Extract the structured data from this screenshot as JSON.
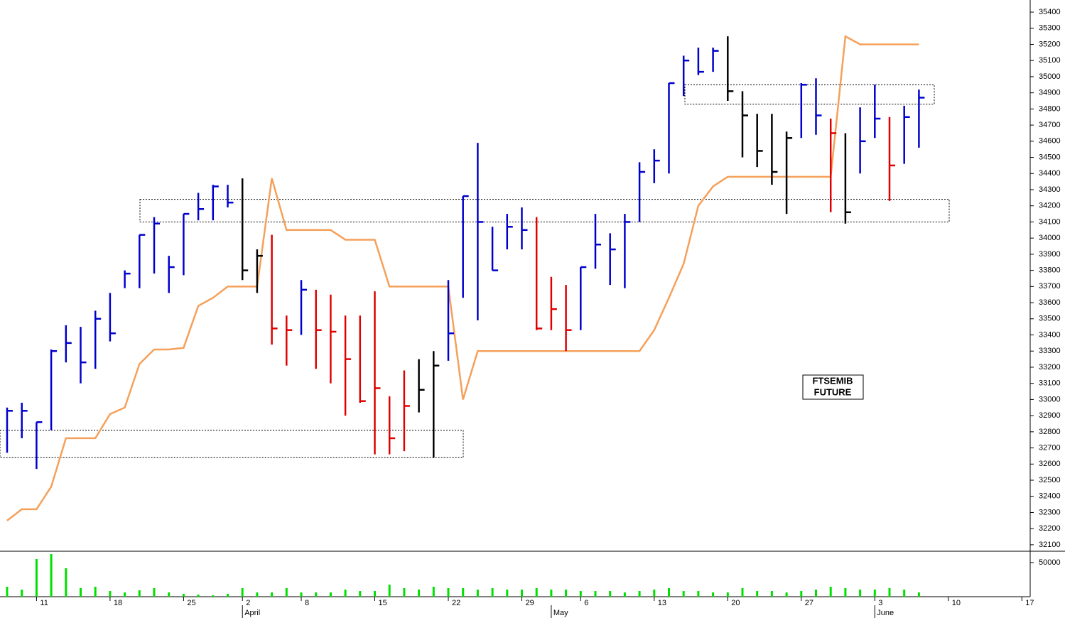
{
  "chart_data": [
    {
      "type": "ohlc",
      "categories": [
        null,
        null,
        "11",
        null,
        null,
        null,
        null,
        "18",
        null,
        null,
        null,
        null,
        "25",
        null,
        null,
        null,
        "2",
        null,
        null,
        null,
        "8",
        null,
        null,
        null,
        null,
        "15",
        null,
        null,
        null,
        null,
        "22",
        null,
        null,
        null,
        null,
        "29",
        null,
        null,
        null,
        "6",
        null,
        null,
        null,
        null,
        "13",
        null,
        null,
        null,
        null,
        "20",
        null,
        null,
        null,
        null,
        "27",
        null,
        null,
        null,
        null,
        "3",
        null,
        null,
        null,
        null,
        "10",
        null,
        null,
        null,
        null,
        "17"
      ],
      "months": [
        null,
        null,
        null,
        null,
        null,
        null,
        null,
        null,
        null,
        null,
        null,
        null,
        null,
        null,
        null,
        null,
        "April",
        null,
        null,
        null,
        null,
        null,
        null,
        null,
        null,
        null,
        null,
        null,
        null,
        null,
        null,
        null,
        null,
        null,
        null,
        null,
        null,
        "May",
        null,
        null,
        null,
        null,
        null,
        null,
        null,
        null,
        null,
        null,
        null,
        null,
        null,
        null,
        null,
        null,
        null,
        null,
        null,
        null,
        null,
        "June",
        null,
        null,
        null,
        null,
        null,
        null,
        null,
        null,
        null,
        null
      ],
      "high": [
        32950,
        32980,
        32860,
        33310,
        33460,
        33450,
        33550,
        33660,
        33800,
        34020,
        34130,
        33890,
        34150,
        34280,
        34330,
        34330,
        34370,
        33930,
        34020,
        33520,
        33740,
        33680,
        33650,
        33520,
        33520,
        33670,
        33020,
        33180,
        33250,
        33300,
        33740,
        34260,
        34590,
        34070,
        34150,
        34190,
        34130,
        33760,
        33710,
        33820,
        34150,
        34030,
        34150,
        34470,
        34550,
        34960,
        35130,
        35180,
        35180,
        35250,
        34910,
        34770,
        34770,
        34660,
        34960,
        34990,
        34740,
        34650,
        34810,
        34950,
        34750,
        34820,
        34920,
        null,
        null,
        null,
        null,
        null,
        null,
        null
      ],
      "low": [
        32670,
        32760,
        32570,
        32810,
        33230,
        33100,
        33190,
        33360,
        33690,
        33690,
        33780,
        33660,
        33770,
        34110,
        34110,
        34190,
        33740,
        33660,
        33340,
        33210,
        33400,
        33190,
        33100,
        32900,
        32980,
        32660,
        32660,
        32680,
        32920,
        32640,
        33240,
        33630,
        33490,
        33800,
        33930,
        33930,
        33430,
        33430,
        33300,
        33430,
        33810,
        33710,
        33690,
        34100,
        34340,
        34400,
        34880,
        35010,
        35030,
        34850,
        34500,
        34440,
        34330,
        34150,
        34620,
        34640,
        34160,
        34090,
        34400,
        34620,
        34230,
        34460,
        34560,
        null,
        null,
        null,
        null,
        null,
        null,
        null
      ],
      "close": [
        32930,
        32930,
        32860,
        33300,
        33350,
        33230,
        33500,
        33410,
        33780,
        34020,
        34090,
        33820,
        34150,
        34180,
        34320,
        34220,
        33800,
        33890,
        33440,
        33430,
        33680,
        33430,
        33420,
        33250,
        32990,
        33070,
        32760,
        32960,
        33060,
        33210,
        33410,
        34260,
        34100,
        33800,
        34070,
        34050,
        33440,
        33560,
        33430,
        33820,
        33960,
        33930,
        34100,
        34410,
        34480,
        34960,
        35100,
        35030,
        35160,
        34910,
        34760,
        34540,
        34410,
        34620,
        34950,
        34760,
        34650,
        34160,
        34600,
        34740,
        34450,
        34750,
        34870,
        null,
        null,
        null,
        null,
        null,
        null,
        null
      ],
      "colors": [
        "#0000cc",
        "#0000cc",
        "#0000cc",
        "#0000cc",
        "#0000cc",
        "#0000cc",
        "#0000cc",
        "#0000cc",
        "#0000cc",
        "#0000cc",
        "#0000cc",
        "#0000cc",
        "#0000cc",
        "#0000cc",
        "#0000cc",
        "#0000cc",
        "#000000",
        "#000000",
        "#e00000",
        "#e00000",
        "#0000cc",
        "#e00000",
        "#e00000",
        "#e00000",
        "#e00000",
        "#e00000",
        "#e00000",
        "#e00000",
        "#000000",
        "#000000",
        "#0000cc",
        "#0000cc",
        "#0000cc",
        "#0000cc",
        "#0000cc",
        "#0000cc",
        "#e00000",
        "#e00000",
        "#e00000",
        "#0000cc",
        "#0000cc",
        "#0000cc",
        "#0000cc",
        "#0000cc",
        "#0000cc",
        "#0000cc",
        "#0000cc",
        "#0000cc",
        "#0000cc",
        "#000000",
        "#000000",
        "#000000",
        "#000000",
        "#000000",
        "#0000cc",
        "#0000cc",
        "#e00000",
        "#000000",
        "#0000cc",
        "#0000cc",
        "#e00000",
        "#0000cc",
        "#0000cc",
        null,
        null,
        null,
        null,
        null,
        null,
        null
      ],
      "line_color": "#f5a05a",
      "line_values": [
        32250,
        32320,
        32320,
        32460,
        32760,
        32760,
        32760,
        32910,
        32950,
        33220,
        33310,
        33310,
        33320,
        33580,
        33630,
        33700,
        33700,
        33700,
        34370,
        34050,
        34050,
        34050,
        34050,
        33990,
        33990,
        33990,
        33700,
        33700,
        33700,
        33700,
        33700,
        33000,
        33300,
        33300,
        33300,
        33300,
        33300,
        33300,
        33300,
        33300,
        33300,
        33300,
        33300,
        33300,
        33430,
        33630,
        33840,
        34200,
        34320,
        34380,
        34380,
        34380,
        34380,
        34380,
        34380,
        34380,
        34380,
        35250,
        35200,
        35200,
        35200,
        35200,
        35200,
        null,
        null,
        null,
        null,
        null,
        null,
        null
      ],
      "zones": [
        [
          32640,
          32810
        ],
        [
          34100,
          34240
        ],
        [
          34830,
          34950
        ]
      ],
      "annotation": [
        "FTSEMIB",
        "FUTURE"
      ],
      "ylim": [
        32060,
        35475
      ],
      "yticks": [
        32100,
        32200,
        32300,
        32400,
        32500,
        32600,
        32700,
        32800,
        32900,
        33000,
        33100,
        33200,
        33300,
        33400,
        33500,
        33600,
        33700,
        33800,
        33900,
        34000,
        34100,
        34200,
        34300,
        34400,
        34500,
        34600,
        34700,
        34800,
        34900,
        35000,
        35100,
        35200,
        35300,
        35400
      ]
    },
    {
      "type": "bar",
      "color": "#00e000",
      "values": [
        14600,
        10400,
        55200,
        62500,
        41700,
        12500,
        14600,
        8300,
        6300,
        9400,
        12500,
        6300,
        4200,
        3100,
        2100,
        4200,
        12500,
        6300,
        6300,
        12500,
        6300,
        6300,
        6300,
        10400,
        8300,
        8300,
        17700,
        12500,
        10400,
        14600,
        12500,
        12500,
        10400,
        12500,
        10400,
        10400,
        12500,
        10400,
        10400,
        8300,
        8300,
        8300,
        6300,
        8300,
        10400,
        12500,
        8300,
        8300,
        6300,
        6300,
        12500,
        8300,
        8300,
        6300,
        8300,
        10400,
        14600,
        12500,
        10400,
        10400,
        12500,
        10400,
        6300,
        null,
        null,
        null,
        null,
        null,
        null,
        null
      ],
      "ylim": [
        0,
        65600
      ],
      "yticks": [
        50000
      ]
    }
  ]
}
